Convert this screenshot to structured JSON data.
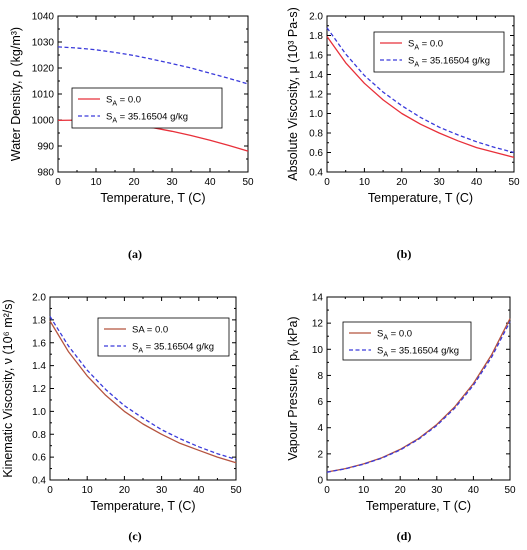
{
  "colors": {
    "fresh": "#e8303a",
    "fresh_c": "#b5533f",
    "sea": "#3a3adb",
    "axis": "#000000"
  },
  "chart_data": [
    {
      "type": "line",
      "panel_label": "(a)",
      "xlabel": "Temperature, T (C)",
      "ylabel": "Water Density, ρ (kg/m³)",
      "xlim": [
        0,
        50
      ],
      "ylim": [
        980,
        1040
      ],
      "xticks": [
        0,
        10,
        20,
        30,
        40,
        50
      ],
      "yticks": [
        980,
        990,
        1000,
        1010,
        1020,
        1030,
        1040
      ],
      "legend_position": "middle-left",
      "x": [
        0,
        5,
        10,
        15,
        20,
        25,
        30,
        35,
        40,
        45,
        50
      ],
      "series": [
        {
          "name": "S_A = 0.0",
          "label_main": "S",
          "label_sub": "A",
          "label_rest": " = 0.0",
          "color_key": "fresh",
          "dashed": false,
          "values": [
            999.84,
            999.97,
            999.7,
            999.1,
            998.21,
            997.05,
            995.65,
            994.03,
            992.22,
            990.21,
            988.03
          ]
        },
        {
          "name": "S_A = 35.16504 g/kg",
          "label_main": "S",
          "label_sub": "A",
          "label_rest": " = 35.16504 g/kg",
          "color_key": "sea",
          "dashed": true,
          "values": [
            1028.1,
            1027.7,
            1027.0,
            1026.0,
            1024.8,
            1023.3,
            1021.7,
            1020.0,
            1018.0,
            1016.0,
            1013.9
          ]
        }
      ]
    },
    {
      "type": "line",
      "panel_label": "(b)",
      "xlabel": "Temperature, T (C)",
      "ylabel": "Absolute Viscosity, μ (10³ Pa-s)",
      "xlim": [
        0,
        50
      ],
      "ylim": [
        0.4,
        2.0
      ],
      "xticks": [
        0,
        10,
        20,
        30,
        40,
        50
      ],
      "yticks": [
        0.4,
        0.6,
        0.8,
        1.0,
        1.2,
        1.4,
        1.6,
        1.8,
        2.0
      ],
      "legend_position": "top-right",
      "x": [
        0,
        5,
        10,
        15,
        20,
        25,
        30,
        35,
        40,
        45,
        50
      ],
      "series": [
        {
          "name": "S_A = 0.0",
          "label_main": "S",
          "label_sub": "A",
          "label_rest": " = 0.0",
          "color_key": "fresh",
          "dashed": false,
          "values": [
            1.79,
            1.52,
            1.31,
            1.14,
            1.0,
            0.89,
            0.8,
            0.72,
            0.65,
            0.6,
            0.55
          ]
        },
        {
          "name": "S_A = 35.16504 g/kg",
          "label_main": "S",
          "label_sub": "A",
          "label_rest": " = 35.16504 g/kg",
          "color_key": "sea",
          "dashed": true,
          "values": [
            1.88,
            1.61,
            1.39,
            1.22,
            1.08,
            0.96,
            0.86,
            0.78,
            0.71,
            0.65,
            0.6
          ]
        }
      ]
    },
    {
      "type": "line",
      "panel_label": "(c)",
      "xlabel": "Temperature, T (C)",
      "ylabel": "Kinematic Viscosity, ν (10⁶ m²/s)",
      "xlim": [
        0,
        50
      ],
      "ylim": [
        0.4,
        2.0
      ],
      "xticks": [
        0,
        10,
        20,
        30,
        40,
        50
      ],
      "yticks": [
        0.4,
        0.6,
        0.8,
        1.0,
        1.2,
        1.4,
        1.6,
        1.8,
        2.0
      ],
      "legend_position": "top-right",
      "x": [
        0,
        5,
        10,
        15,
        20,
        25,
        30,
        35,
        40,
        45,
        50
      ],
      "series": [
        {
          "name": "SA = 0.0",
          "label_main": "SA = 0.0",
          "label_sub": "",
          "label_rest": "",
          "color_key": "fresh_c",
          "dashed": false,
          "values": [
            1.79,
            1.52,
            1.31,
            1.14,
            1.0,
            0.89,
            0.8,
            0.72,
            0.66,
            0.6,
            0.55
          ]
        },
        {
          "name": "S_A = 35.16504 g/kg",
          "label_main": "S",
          "label_sub": "A",
          "label_rest": " = 35.16504 g/kg",
          "color_key": "sea",
          "dashed": true,
          "values": [
            1.83,
            1.57,
            1.36,
            1.19,
            1.05,
            0.94,
            0.84,
            0.76,
            0.69,
            0.63,
            0.58
          ]
        }
      ]
    },
    {
      "type": "line",
      "panel_label": "(d)",
      "xlabel": "Temperature, T (C)",
      "ylabel": "Vapour Pressure, pᵥ (kPa)",
      "xlim": [
        0,
        50
      ],
      "ylim": [
        0,
        14
      ],
      "xticks": [
        0,
        10,
        20,
        30,
        40,
        50
      ],
      "yticks": [
        0,
        2,
        4,
        6,
        8,
        10,
        12,
        14
      ],
      "legend_position": "top-right",
      "x": [
        0,
        5,
        10,
        15,
        20,
        25,
        30,
        35,
        40,
        45,
        50
      ],
      "series": [
        {
          "name": "S_A = 0.0",
          "label_main": "S",
          "label_sub": "A",
          "label_rest": " = 0.0",
          "color_key": "fresh_c",
          "dashed": false,
          "values": [
            0.611,
            0.873,
            1.228,
            1.705,
            2.339,
            3.169,
            4.246,
            5.628,
            7.384,
            9.593,
            12.35
          ]
        },
        {
          "name": "S_A = 35.16504 g/kg",
          "label_main": "S",
          "label_sub": "A",
          "label_rest": " = 35.16504 g/kg",
          "color_key": "sea",
          "dashed": true,
          "values": [
            0.6,
            0.857,
            1.205,
            1.673,
            2.295,
            3.11,
            4.166,
            5.522,
            7.245,
            9.413,
            12.12
          ]
        }
      ]
    }
  ]
}
